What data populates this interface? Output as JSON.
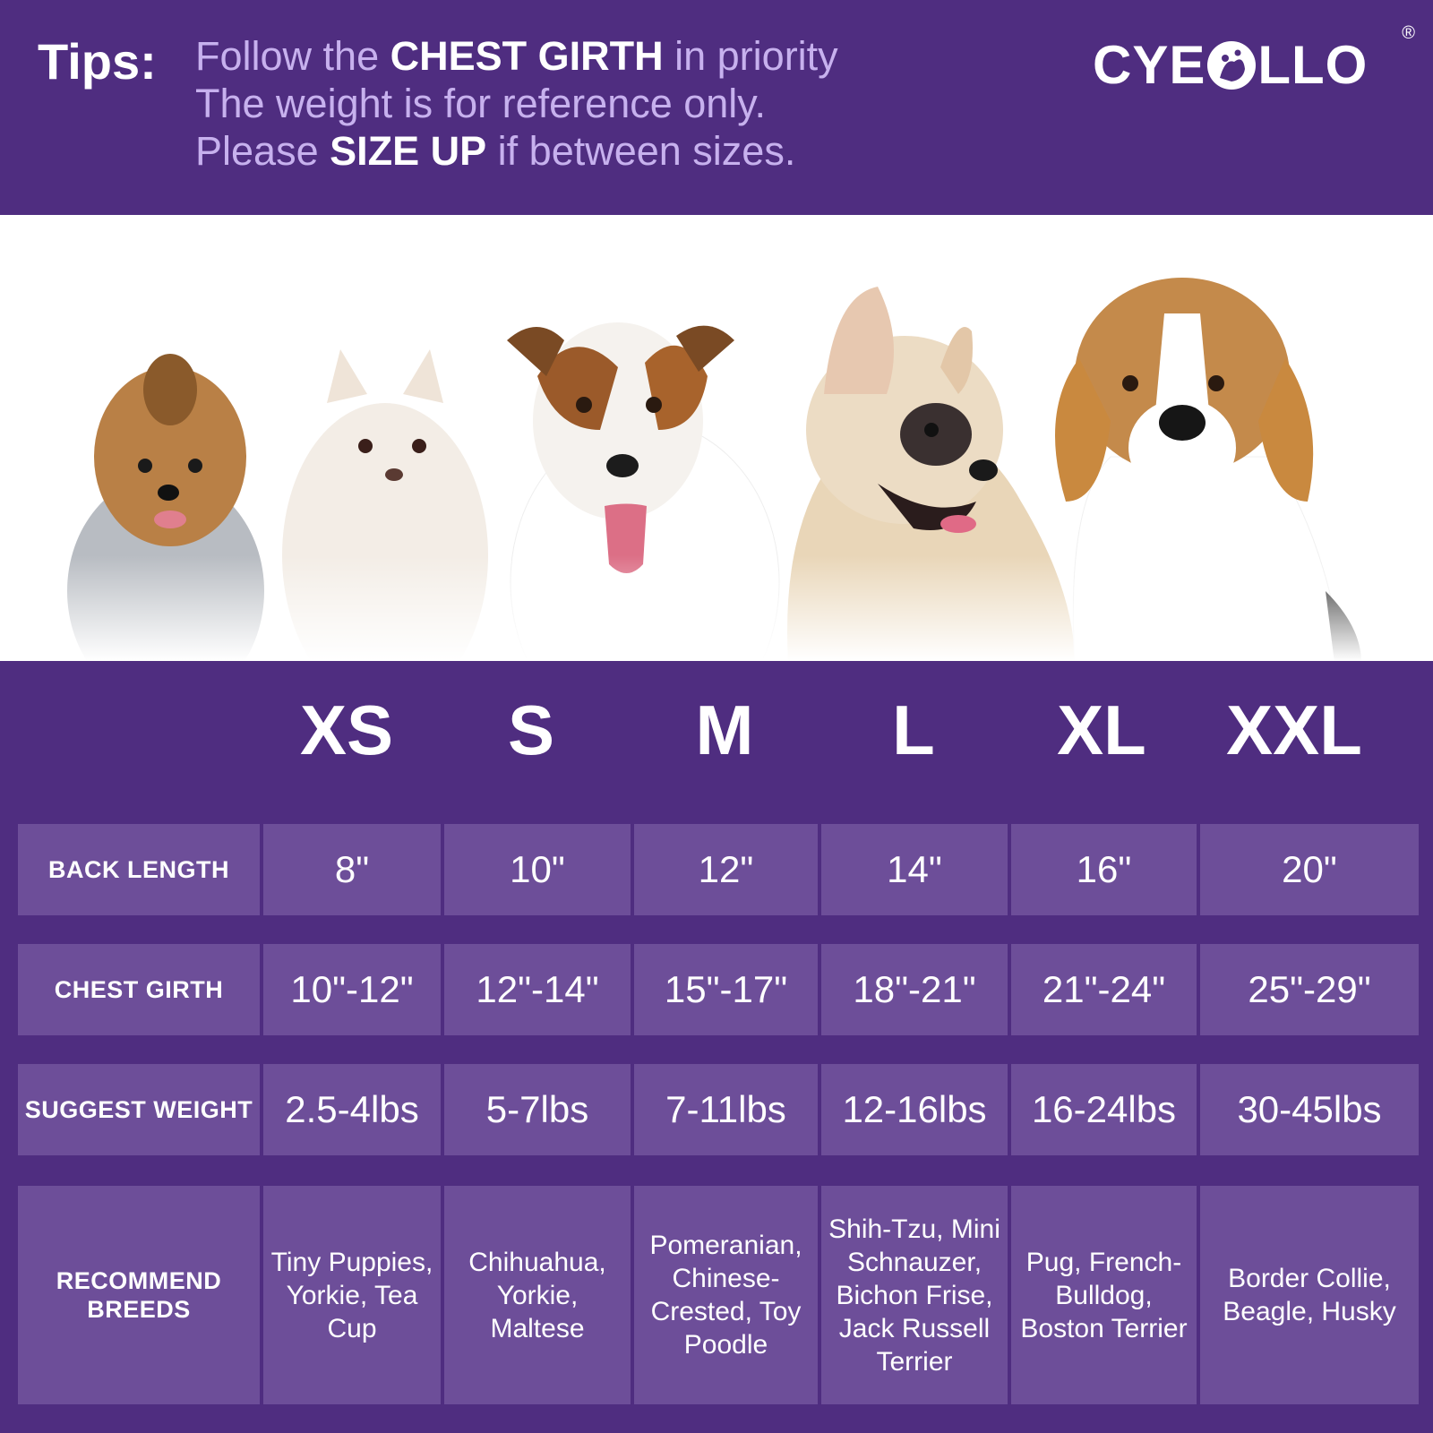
{
  "header": {
    "tips_label": "Tips:",
    "line1_pre": "Follow the ",
    "line1_bold": "CHEST GIRTH",
    "line1_post": " in priority",
    "line2": "The weight is for reference only.",
    "line3_pre": "Please ",
    "line3_bold": "SIZE UP",
    "line3_post": " if between sizes.",
    "brand_left": "CYE",
    "brand_right": "LLO",
    "registered": "®"
  },
  "sizes": [
    "XS",
    "S",
    "M",
    "L",
    "XL",
    "XXL"
  ],
  "rows": [
    {
      "label": "BACK  LENGTH",
      "values": [
        "8\"",
        "10\"",
        "12\"",
        "14\"",
        "16\"",
        "20\""
      ]
    },
    {
      "label": "CHEST GIRTH",
      "values": [
        "10\"-12\"",
        "12\"-14\"",
        "15\"-17\"",
        "18\"-21\"",
        "21\"-24\"",
        "25\"-29\""
      ]
    },
    {
      "label": "SUGGEST WEIGHT",
      "values": [
        "2.5-4lbs",
        "5-7lbs",
        "7-11lbs",
        "12-16lbs",
        "16-24lbs",
        "30-45lbs"
      ]
    },
    {
      "label": "RECOMMEND BREEDS",
      "values": [
        "Tiny Puppies, Yorkie, Tea Cup",
        "Chihuahua, Yorkie, Maltese",
        "Pomeranian, Chinese-Crested, Toy Poodle",
        "Shih-Tzu, Mini Schnauzer, Bichon Frise, Jack Russell Terrier",
        "Pug, French-Bulldog, Boston Terrier",
        "Border Collie, Beagle, Husky"
      ]
    }
  ],
  "colors": {
    "purple": "#4f2d80",
    "cell": "#6d4e99",
    "tip_text": "#c7b1ee"
  },
  "illustration": [
    "yorkie-icon",
    "pomeranian-icon",
    "jack-russell-icon",
    "french-bulldog-icon",
    "beagle-icon"
  ]
}
